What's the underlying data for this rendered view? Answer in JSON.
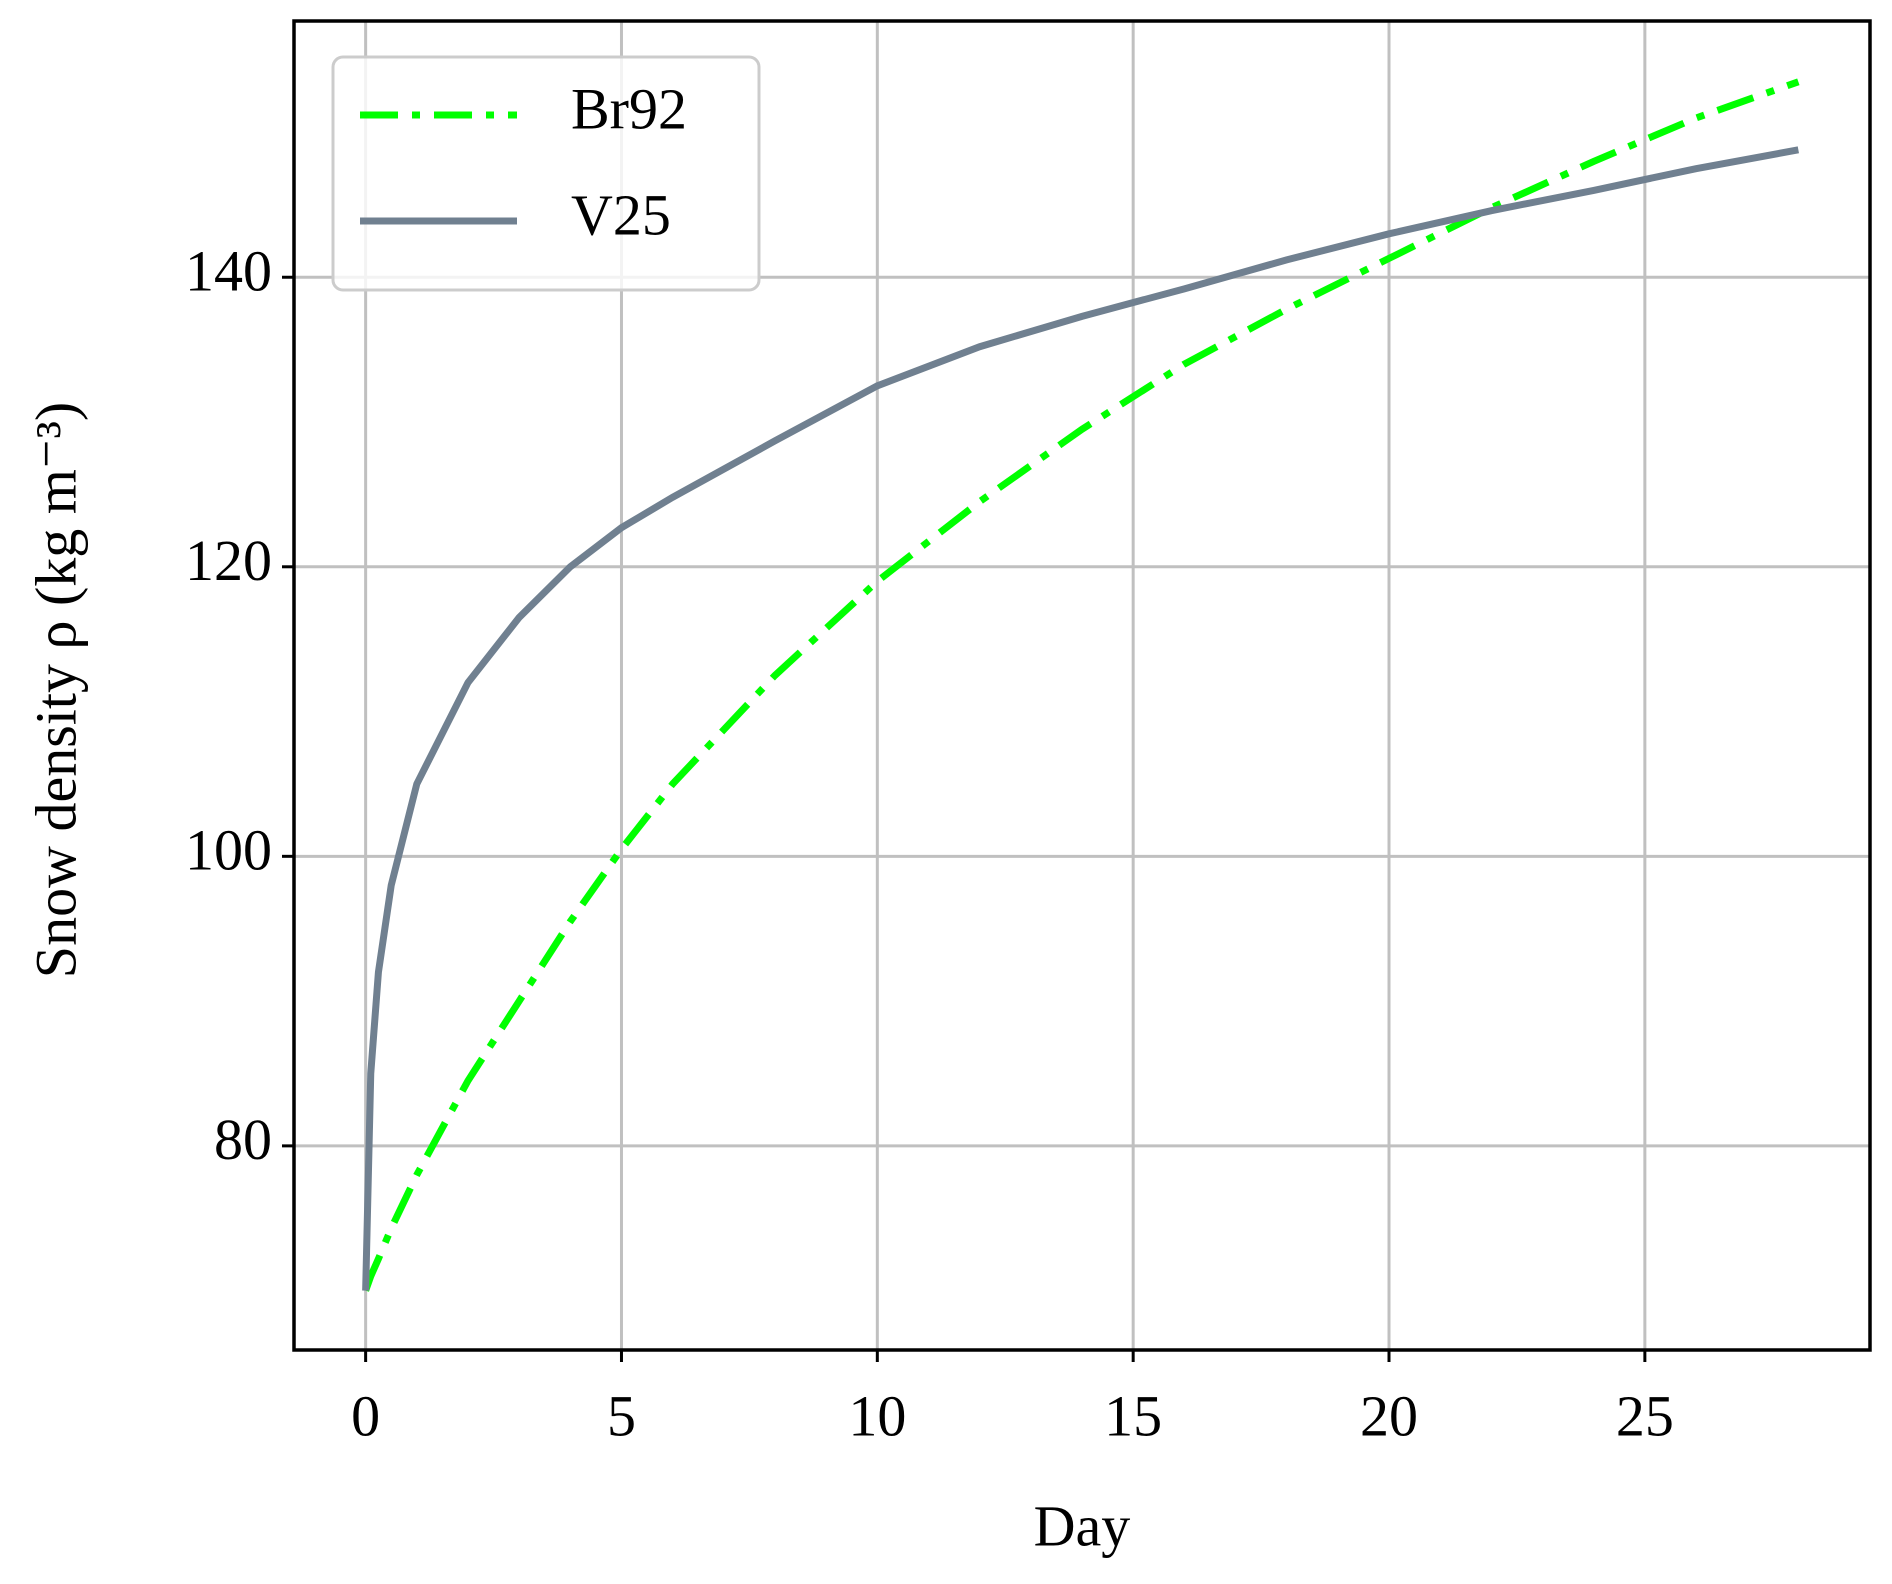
{
  "chart_data": {
    "type": "line",
    "xlabel": "Day",
    "ylabel": "Snow density ρ (kg m⁻³)",
    "x": [
      0,
      0.1,
      0.25,
      0.5,
      1,
      2,
      3,
      4,
      5,
      6,
      8,
      10,
      12,
      14,
      16,
      18,
      20,
      22,
      24,
      26,
      28
    ],
    "series": [
      {
        "name": "Br92",
        "color": "#00ff00",
        "style": "dashdot",
        "values": [
          70,
          71,
          72.2,
          74.3,
          78,
          84.5,
          90,
          95.5,
          100.5,
          105,
          112.5,
          119,
          124.5,
          129.5,
          134,
          137.8,
          141.3,
          144.8,
          148,
          151,
          153.5
        ]
      },
      {
        "name": "V25",
        "color": "#708090",
        "style": "solid",
        "values": [
          70,
          85,
          92,
          98,
          105,
          112,
          116.5,
          120,
          122.7,
          124.8,
          128.7,
          132.5,
          135.2,
          137.3,
          139.2,
          141.2,
          143,
          144.6,
          146,
          147.5,
          148.8
        ]
      }
    ],
    "xlim": [
      -1.4,
      29.4
    ],
    "ylim": [
      65.9,
      157.7
    ],
    "xticks": [
      0,
      5,
      10,
      15,
      20,
      25
    ],
    "yticks": [
      80,
      100,
      120,
      140
    ],
    "grid": true,
    "legend": "upper left"
  }
}
